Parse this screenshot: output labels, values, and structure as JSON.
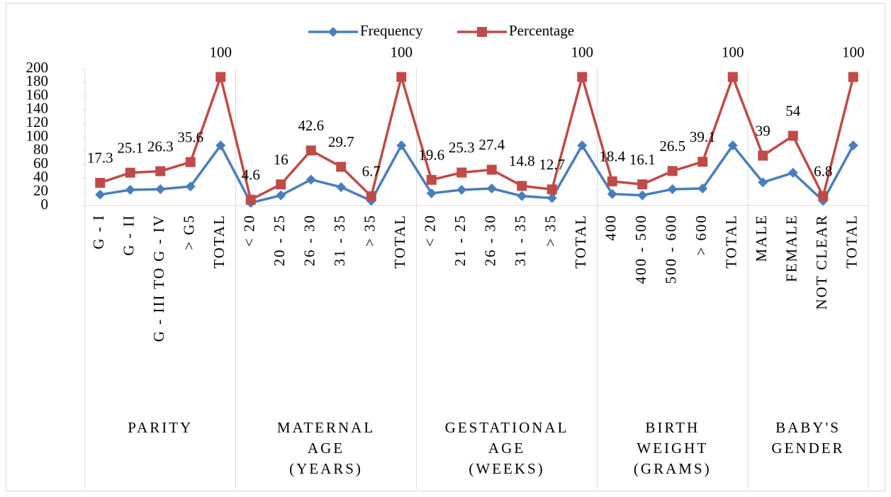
{
  "chart_data": {
    "type": "line",
    "stacked": true,
    "groups": [
      {
        "label": "PARITY",
        "categories": [
          "G - I",
          "G - II",
          "G - III TO G - IV",
          "> G5",
          "TOTAL"
        ]
      },
      {
        "label": "MATERNAL AGE (YEARS)",
        "categories": [
          "< 20",
          "20 - 25",
          "26 - 30",
          "31 - 35",
          "> 35",
          "TOTAL"
        ]
      },
      {
        "label": "GESTATIONAL AGE (WEEKS)",
        "categories": [
          "< 20",
          "21 - 25",
          "26 - 30",
          "31 - 35",
          "> 35",
          "TOTAL"
        ]
      },
      {
        "label": "BIRTH WEIGHT (GRAMS)",
        "categories": [
          "400",
          "400 - 500",
          "500 - 600",
          "> 600",
          "TOTAL"
        ]
      },
      {
        "label": "BABY'S GENDER",
        "categories": [
          "MALE",
          "FEMALE",
          "NOT CLEAR",
          "TOTAL"
        ]
      }
    ],
    "series": [
      {
        "name": "Frequency",
        "color": "#4a7ebb",
        "marker": "diamond",
        "values": [
          16,
          23,
          24,
          28,
          88,
          4,
          15,
          38,
          27,
          7,
          88,
          18,
          23,
          25,
          14,
          11,
          88,
          17,
          15,
          24,
          25,
          88,
          34,
          48,
          7,
          88
        ]
      },
      {
        "name": "Percentage",
        "color": "#be4b48",
        "marker": "square",
        "data_labels": true,
        "values": [
          17.3,
          25.1,
          26.3,
          35.6,
          100,
          4.6,
          16,
          42.6,
          29.7,
          6.7,
          100,
          19.6,
          25.3,
          27.4,
          14.8,
          12.7,
          100,
          18.4,
          16.1,
          26.5,
          39.1,
          100,
          39,
          54,
          6.8,
          100
        ]
      }
    ],
    "ylim": [
      0,
      200
    ],
    "yticks": [
      0,
      20,
      40,
      60,
      80,
      100,
      120,
      140,
      160,
      180,
      200
    ],
    "legend": "top"
  }
}
